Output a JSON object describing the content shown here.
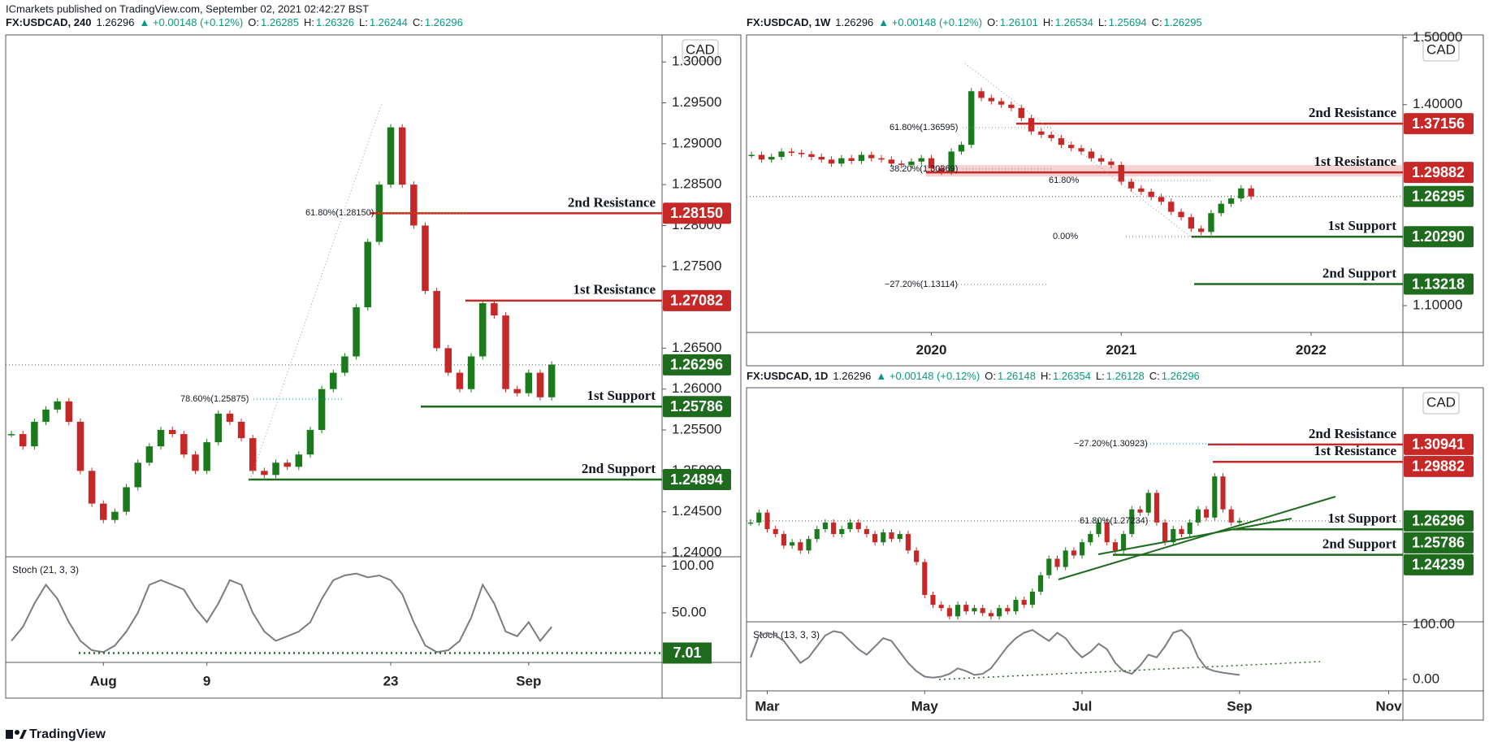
{
  "published": "ICmarkets published on TradingView.com, September 02, 2021 02:42:27 BST",
  "footer": "TradingView",
  "chart_data": [
    {
      "type": "candlestick",
      "header": {
        "symbol": "FX:USDCAD, 240",
        "last": "1.26296",
        "change": "▲ +0.00148 (+0.12%)",
        "ohlc": [
          {
            "k": "O:",
            "v": "1.26285"
          },
          {
            "k": "H:",
            "v": "1.26326"
          },
          {
            "k": "L:",
            "v": "1.26244"
          },
          {
            "k": "C:",
            "v": "1.26296"
          }
        ]
      },
      "currency": "CAD",
      "categories": [
        null,
        null,
        null,
        null,
        null,
        null,
        null,
        null,
        "Aug",
        null,
        null,
        null,
        null,
        null,
        null,
        null,
        null,
        "9",
        null,
        null,
        null,
        null,
        null,
        null,
        null,
        null,
        null,
        null,
        null,
        null,
        null,
        null,
        null,
        "23",
        null,
        null,
        null,
        null,
        null,
        null,
        null,
        null,
        null,
        null,
        null,
        "Sep",
        null,
        null
      ],
      "values": [
        1.2545,
        1.253,
        1.256,
        1.2575,
        1.2585,
        1.256,
        1.25,
        1.246,
        1.244,
        1.245,
        1.248,
        1.251,
        1.253,
        1.255,
        1.2545,
        1.252,
        1.25,
        1.2535,
        1.257,
        1.256,
        1.254,
        1.25,
        1.2495,
        1.251,
        1.2505,
        1.252,
        1.255,
        1.26,
        1.262,
        1.264,
        1.27,
        1.278,
        1.285,
        1.292,
        1.285,
        1.28,
        1.272,
        1.265,
        1.262,
        1.26,
        1.264,
        1.2705,
        1.269,
        1.26,
        1.2595,
        1.262,
        1.259,
        1.263
      ],
      "up_color": "#1b7a1b",
      "down_color": "#c62828",
      "ylim": [
        1.2395,
        1.3033
      ],
      "yticks": [
        {
          "value": 1.24,
          "label": "1.24000"
        },
        {
          "value": 1.245,
          "label": "1.24500"
        },
        {
          "value": 1.25,
          "label": "1.25000"
        },
        {
          "value": 1.255,
          "label": "1.25500"
        },
        {
          "value": 1.26,
          "label": "1.26000"
        },
        {
          "value": 1.265,
          "label": "1.26500"
        },
        {
          "value": 1.27,
          "label": "1.27000"
        },
        {
          "value": 1.275,
          "label": "1.27500"
        },
        {
          "value": 1.28,
          "label": "1.28000"
        },
        {
          "value": 1.285,
          "label": "1.28500"
        },
        {
          "value": 1.29,
          "label": "1.29000"
        },
        {
          "value": 1.295,
          "label": "1.29500"
        },
        {
          "value": 1.3,
          "label": "1.30000"
        }
      ],
      "levels": [
        {
          "name": "2nd Resistance",
          "value": 1.2815,
          "label": "1.28150",
          "color": "#c62828"
        },
        {
          "name": "1st Resistance",
          "value": 1.27082,
          "label": "1.27082",
          "color": "#c62828"
        },
        {
          "name": "1st Support",
          "value": 1.25786,
          "label": "1.25786",
          "color": "#1e6b1e"
        },
        {
          "name": "2nd Support",
          "value": 1.24894,
          "label": "1.24894",
          "color": "#1e6b1e"
        }
      ],
      "current": {
        "value": 1.26296,
        "label": "1.26296",
        "color": "#1e6b1e"
      },
      "annotations": [
        "61.80%(1.28150)",
        "78.60%(1.25875)"
      ],
      "stoch": {
        "title": "Stoch (21, 3, 3)",
        "color": "#7b7b85",
        "values": [
          20,
          35,
          60,
          80,
          65,
          40,
          20,
          10,
          8,
          15,
          30,
          50,
          80,
          85,
          80,
          75,
          55,
          40,
          60,
          85,
          80,
          50,
          30,
          20,
          25,
          30,
          40,
          65,
          85,
          90,
          92,
          88,
          90,
          85,
          70,
          40,
          15,
          8,
          10,
          20,
          45,
          80,
          60,
          30,
          25,
          40,
          20,
          35
        ],
        "ylim": [
          -3,
          110
        ],
        "yticks": [
          {
            "value": 100,
            "label": "100.00"
          },
          {
            "value": 50,
            "label": "50.00"
          }
        ],
        "level": 7.01,
        "level_color": "#1e6b1e"
      }
    },
    {
      "type": "candlestick",
      "header": {
        "symbol": "FX:USDCAD, 1W",
        "last": "1.26296",
        "change": "▲ +0.00148 (+0.12%)",
        "ohlc": [
          {
            "k": "O:",
            "v": "1.26101"
          },
          {
            "k": "H:",
            "v": "1.26534"
          },
          {
            "k": "L:",
            "v": "1.25694"
          },
          {
            "k": "C:",
            "v": "1.26295"
          }
        ]
      },
      "currency": "CAD",
      "categories": [
        null,
        null,
        null,
        null,
        null,
        null,
        null,
        null,
        null,
        null,
        null,
        null,
        null,
        null,
        null,
        null,
        null,
        null,
        "2020",
        null,
        null,
        null,
        null,
        null,
        null,
        null,
        null,
        null,
        null,
        null,
        null,
        null,
        null,
        null,
        null,
        null,
        null,
        "2021",
        null,
        null,
        null,
        null,
        null,
        null,
        null,
        null,
        null,
        null,
        null,
        null,
        null,
        null,
        null,
        null,
        null,
        null,
        "2022"
      ],
      "values": [
        1.325,
        1.318,
        1.322,
        1.33,
        1.328,
        1.326,
        1.322,
        1.318,
        1.312,
        1.32,
        1.316,
        1.325,
        1.32,
        1.318,
        1.312,
        1.31,
        1.315,
        1.32,
        1.305,
        1.3,
        1.33,
        1.34,
        1.42,
        1.41,
        1.405,
        1.4,
        1.395,
        1.38,
        1.36,
        1.355,
        1.35,
        1.34,
        1.335,
        1.33,
        1.32,
        1.315,
        1.31,
        1.285,
        1.275,
        1.27,
        1.262,
        1.255,
        1.24,
        1.232,
        1.215,
        1.21,
        1.238,
        1.252,
        1.26,
        1.275,
        1.263,
        null,
        null,
        null,
        null,
        null,
        null
      ],
      "up_color": "#1b7a1b",
      "down_color": "#c62828",
      "ylim": [
        1.06,
        1.504
      ],
      "yticks": [
        {
          "value": 1.1,
          "label": "1.10000"
        },
        {
          "value": 1.4,
          "label": "1.40000"
        },
        {
          "value": 1.5,
          "label": "1.50000"
        }
      ],
      "levels": [
        {
          "name": "2nd Resistance",
          "value": 1.37156,
          "label": "1.37156",
          "color": "#c62828"
        },
        {
          "name": "1st Resistance",
          "value": 1.29882,
          "label": "1.29882",
          "color": "#c62828"
        },
        {
          "name": "1st Support",
          "value": 1.2029,
          "label": "1.20290",
          "color": "#1e6b1e"
        },
        {
          "name": "2nd Support",
          "value": 1.13218,
          "label": "1.13218",
          "color": "#1e6b1e"
        }
      ],
      "current": {
        "value": 1.26295,
        "label": "1.26295",
        "color": "#1e6b1e"
      },
      "annotations": [
        "61.80%(1.36595)",
        "38.20%(1.30369)",
        "61.80%",
        "0.00%",
        "−27.20%(1.13114)"
      ]
    },
    {
      "type": "candlestick",
      "header": {
        "symbol": "FX:USDCAD, 1D",
        "last": "1.26296",
        "change": "▲ +0.00148 (+0.12%)",
        "ohlc": [
          {
            "k": "O:",
            "v": "1.26148"
          },
          {
            "k": "H:",
            "v": "1.26354"
          },
          {
            "k": "L:",
            "v": "1.26128"
          },
          {
            "k": "C:",
            "v": "1.26296"
          }
        ]
      },
      "currency": "CAD",
      "categories": [
        null,
        null,
        "Mar",
        null,
        null,
        null,
        null,
        null,
        null,
        null,
        null,
        null,
        null,
        null,
        null,
        null,
        null,
        null,
        null,
        null,
        null,
        "May",
        null,
        null,
        null,
        null,
        null,
        null,
        null,
        null,
        null,
        null,
        null,
        null,
        null,
        null,
        null,
        null,
        null,
        null,
        "Jul",
        null,
        null,
        null,
        null,
        null,
        null,
        null,
        null,
        null,
        null,
        null,
        null,
        null,
        null,
        null,
        null,
        null,
        null,
        "Sep",
        null,
        null,
        null,
        null,
        null,
        null,
        null,
        null,
        null,
        null,
        null,
        null,
        null,
        null,
        null,
        null,
        null,
        "Nov"
      ],
      "values": [
        1.262,
        1.268,
        1.258,
        1.255,
        1.248,
        1.25,
        1.245,
        1.252,
        1.258,
        1.262,
        1.255,
        1.258,
        1.262,
        1.258,
        1.255,
        1.25,
        1.256,
        1.252,
        1.255,
        1.245,
        1.238,
        1.218,
        1.212,
        1.21,
        1.205,
        1.212,
        1.208,
        1.21,
        1.207,
        1.205,
        1.21,
        1.208,
        1.215,
        1.212,
        1.22,
        1.23,
        1.24,
        1.235,
        1.245,
        1.242,
        1.25,
        1.255,
        1.262,
        1.25,
        1.245,
        1.255,
        1.27,
        1.268,
        1.28,
        1.262,
        1.25,
        1.258,
        1.255,
        1.262,
        1.27,
        1.265,
        1.29,
        1.27,
        1.262,
        1.263,
        null,
        null,
        null,
        null,
        null,
        null,
        null,
        null,
        null,
        null,
        null,
        null,
        null,
        null,
        null,
        null,
        null,
        null
      ],
      "up_color": "#1b7a1b",
      "down_color": "#c62828",
      "ylim": [
        1.2017,
        1.3439
      ],
      "levels": [
        {
          "name": "2nd Resistance",
          "value": 1.30941,
          "label": "1.30941",
          "color": "#c62828"
        },
        {
          "name": "1st Resistance",
          "value": 1.29882,
          "label": "1.29882",
          "color": "#c62828"
        },
        {
          "name": "1st Support",
          "value": 1.25786,
          "label": "1.25786",
          "color": "#1e6b1e"
        },
        {
          "name": "2nd Support",
          "value": 1.24239,
          "label": "1.24239",
          "color": "#1e6b1e"
        }
      ],
      "current": {
        "value": 1.26296,
        "label": "1.26296",
        "color": "#1e6b1e"
      },
      "annotations": [
        "−27.20%(1.30923)",
        "61.80%(1.27234)"
      ],
      "stoch": {
        "title": "Stoch (13, 3, 3)",
        "color": "#7b7b85",
        "values": [
          40,
          80,
          85,
          80,
          70,
          50,
          30,
          40,
          60,
          80,
          88,
          85,
          70,
          55,
          45,
          60,
          75,
          70,
          50,
          30,
          15,
          5,
          3,
          5,
          10,
          20,
          15,
          8,
          10,
          20,
          40,
          60,
          75,
          85,
          90,
          80,
          70,
          85,
          75,
          55,
          40,
          50,
          65,
          55,
          30,
          15,
          10,
          25,
          45,
          40,
          60,
          85,
          90,
          75,
          40,
          20,
          15,
          12,
          10,
          8
        ],
        "ylim": [
          -21,
          105
        ],
        "yticks": [
          {
            "value": 100,
            "label": "100.00"
          },
          {
            "value": 0,
            "label": "0.00"
          }
        ]
      }
    }
  ]
}
